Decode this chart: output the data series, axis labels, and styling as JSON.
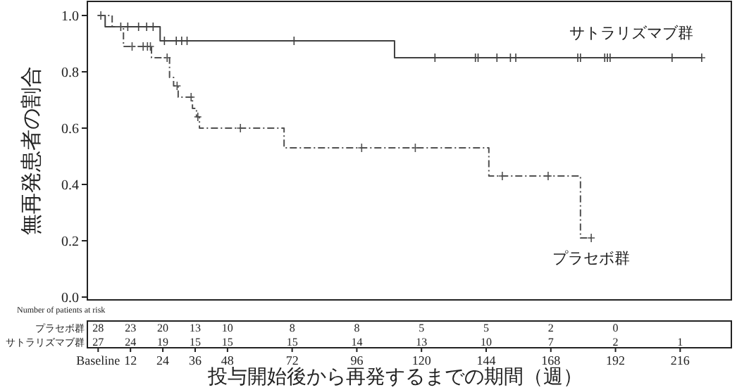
{
  "chart_data": {
    "type": "step",
    "ylabel": "無再発患者の割合",
    "xlabel": "投与開始後から再発するまでの期間（週）",
    "xlim": [
      -4,
      235
    ],
    "ylim": [
      -0.01,
      1.05
    ],
    "xticks": [
      {
        "value": 0,
        "label": "Baseline"
      },
      12,
      24,
      36,
      48,
      72,
      96,
      120,
      144,
      168,
      192,
      216
    ],
    "yticks": [
      {
        "value": 0,
        "label": "0.0"
      },
      {
        "value": 0.2,
        "label": "0.2"
      },
      {
        "value": 0.4,
        "label": "0.4"
      },
      {
        "value": 0.6,
        "label": "0.6"
      },
      {
        "value": 0.8,
        "label": "0.8"
      },
      {
        "value": 1,
        "label": "1.0"
      }
    ],
    "grid": false,
    "legend": false,
    "series": [
      {
        "name": "サトラリズマブ群",
        "color": "#404040",
        "line_style": "solid",
        "x": [
          0,
          2.6,
          23,
          110,
          224
        ],
        "values": [
          1,
          0.96,
          0.91,
          0.85,
          0.85
        ]
      },
      {
        "type": "scatter",
        "marker": "cross",
        "color": "#404040",
        "x": [
          8.4,
          11,
          15,
          18,
          20.4,
          24.6,
          29,
          31,
          33,
          72.7,
          125,
          140,
          141,
          148,
          153,
          155,
          178,
          179,
          188,
          189,
          190,
          213,
          224
        ],
        "values": [
          0.96,
          0.96,
          0.96,
          0.96,
          0.96,
          0.91,
          0.91,
          0.91,
          0.91,
          0.91,
          0.85,
          0.85,
          0.85,
          0.85,
          0.85,
          0.85,
          0.85,
          0.85,
          0.85,
          0.85,
          0.85,
          0.85,
          0.85
        ]
      },
      {
        "name": "プラセボ群",
        "color": "#505050",
        "line_style": "dashdot",
        "x": [
          0,
          5.2,
          9.4,
          19.8,
          26.5,
          28,
          29.7,
          35,
          36.5,
          37.6,
          69,
          145,
          179,
          183
        ],
        "values": [
          1,
          0.96,
          0.89,
          0.85,
          0.78,
          0.75,
          0.71,
          0.67,
          0.64,
          0.6,
          0.53,
          0.43,
          0.21,
          0.21
        ]
      },
      {
        "type": "scatter",
        "marker": "cross",
        "color": "#505050",
        "x": [
          1,
          12.6,
          16.7,
          18.3,
          19.4,
          25.6,
          29.3,
          34.5,
          37,
          52.8,
          97.8,
          117.7,
          150,
          167,
          183
        ],
        "values": [
          1,
          0.89,
          0.89,
          0.89,
          0.89,
          0.85,
          0.75,
          0.71,
          0.64,
          0.6,
          0.53,
          0.53,
          0.43,
          0.43,
          0.21
        ]
      }
    ],
    "annotations": [
      "Number of patients at risk",
      "プラセボ群",
      "28 23 20 13 10 8 8 5 5 2 0",
      "サトラリズマブ群",
      "27 24 19 15 15 15 14 13 10 7 2 1"
    ]
  }
}
